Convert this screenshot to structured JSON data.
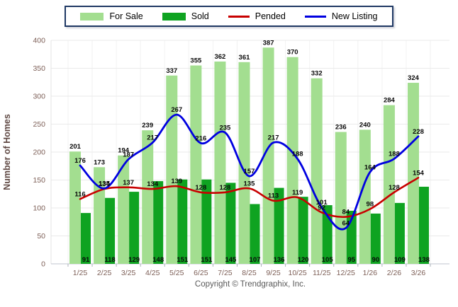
{
  "legend": {
    "items": [
      {
        "label": "For Sale",
        "swatch": "bar",
        "color": "#A3DE90"
      },
      {
        "label": "Sold",
        "swatch": "bar",
        "color": "#0FA321"
      },
      {
        "label": "Pended",
        "swatch": "line",
        "color": "#C80000"
      },
      {
        "label": "New Listing",
        "swatch": "line",
        "color": "#0000E0"
      }
    ]
  },
  "chart_data": {
    "type": "bar+line",
    "title": "",
    "xlabel": "",
    "ylabel": "Number of Homes",
    "ylim": [
      0,
      400
    ],
    "yticks": [
      0,
      50,
      100,
      150,
      200,
      250,
      300,
      350,
      400
    ],
    "grid": true,
    "legend_position": "top-center",
    "categories": [
      "1/25",
      "2/25",
      "3/25",
      "4/25",
      "5/25",
      "6/25",
      "7/25",
      "8/25",
      "9/25",
      "10/25",
      "11/25",
      "12/25",
      "1/26",
      "2/26",
      "3/26"
    ],
    "series": [
      {
        "name": "For Sale",
        "type": "bar",
        "color": "#A3DE90",
        "values": [
          201,
          173,
          194,
          239,
          337,
          355,
          362,
          361,
          387,
          370,
          332,
          236,
          240,
          284,
          324
        ]
      },
      {
        "name": "Sold",
        "type": "bar",
        "color": "#0FA321",
        "values": [
          91,
          118,
          129,
          148,
          151,
          151,
          145,
          107,
          136,
          120,
          105,
          95,
          90,
          109,
          138
        ]
      },
      {
        "name": "Pended",
        "type": "line",
        "color": "#C80000",
        "values": [
          116,
          134,
          137,
          134,
          139,
          128,
          128,
          135,
          113,
          119,
          92,
          84,
          98,
          128,
          154
        ]
      },
      {
        "name": "New Listing",
        "type": "line",
        "color": "#0000E0",
        "values": [
          176,
          135,
          187,
          217,
          267,
          216,
          235,
          157,
          217,
          188,
          101,
          64,
          164,
          188,
          228
        ]
      }
    ]
  },
  "axis_colors": {
    "tick_label": "#7E6058",
    "axis_title": "#5E4742",
    "data_label": "#0A0A0A"
  },
  "footer": {
    "copyright": "Copyright © Trendgraphix, Inc."
  }
}
